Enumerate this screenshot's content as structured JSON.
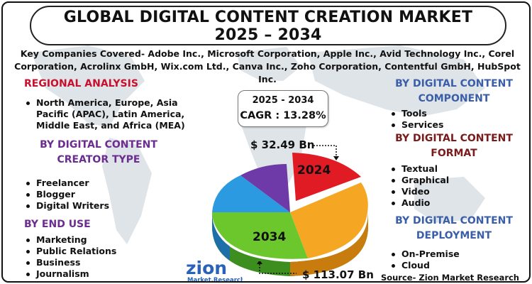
{
  "title": {
    "line1": "GLOBAL DIGITAL CONTENT CREATION MARKET",
    "line2": "2025 – 2034"
  },
  "companies": {
    "line1": "Key Companies Covered- Adobe Inc., Microsoft Corporation, Apple Inc., Avid Technology Inc., Corel",
    "line2": "Corporation, Acrolinx GmbH, Wix.com Ltd., Canva Inc., Zoho Corporation, Contentful GmbH, HubSpot Inc."
  },
  "regional": {
    "heading": "REGIONAL ANALYSIS",
    "items": [
      "North America, Europe, Asia",
      "Pacific (APAC), Latin America,",
      "Middle East, and Africa (MEA)"
    ]
  },
  "creator_type": {
    "heading_line1": "BY DIGITAL CONTENT",
    "heading_line2": "CREATOR TYPE",
    "items": [
      "Freelancer",
      "Blogger",
      "Digital Writers"
    ]
  },
  "end_use": {
    "heading": "BY END USE",
    "items": [
      "Marketing",
      "Public Relations",
      "Business",
      "Journalism"
    ]
  },
  "component": {
    "heading_line1": "BY DIGITAL CONTENT",
    "heading_line2": "COMPONENT",
    "items": [
      "Tools",
      "Services"
    ]
  },
  "format": {
    "heading_line1": "BY DIGITAL CONTENT",
    "heading_line2": "FORMAT",
    "items": [
      "Textual",
      "Graphical",
      "Video",
      "Audio"
    ]
  },
  "deployment": {
    "heading_line1": "BY DIGITAL CONTENT",
    "heading_line2": "DEPLOYMENT",
    "items": [
      "On-Premise",
      "Cloud"
    ]
  },
  "cagr": {
    "period": "2025 - 2034",
    "label": "CAGR : 13.28%"
  },
  "values": {
    "start": "$ 32.49 Bn",
    "end": "$ 113.07 Bn"
  },
  "pie": {
    "label_start": "2024",
    "label_end": "2034"
  },
  "logo": {
    "name": "zion",
    "sub": "Market.Research"
  },
  "source": "Source- Zion Market Research",
  "colors": {
    "red": "#e01b24",
    "orange": "#f5a623",
    "green": "#6cc72c",
    "blue": "#2b9ae0",
    "purple": "#6e3aa8",
    "heading_red": "#c8102e",
    "heading_blue": "#3a5ea8",
    "heading_purple": "#6b2d8f",
    "heading_maroon": "#7a1a1a"
  }
}
